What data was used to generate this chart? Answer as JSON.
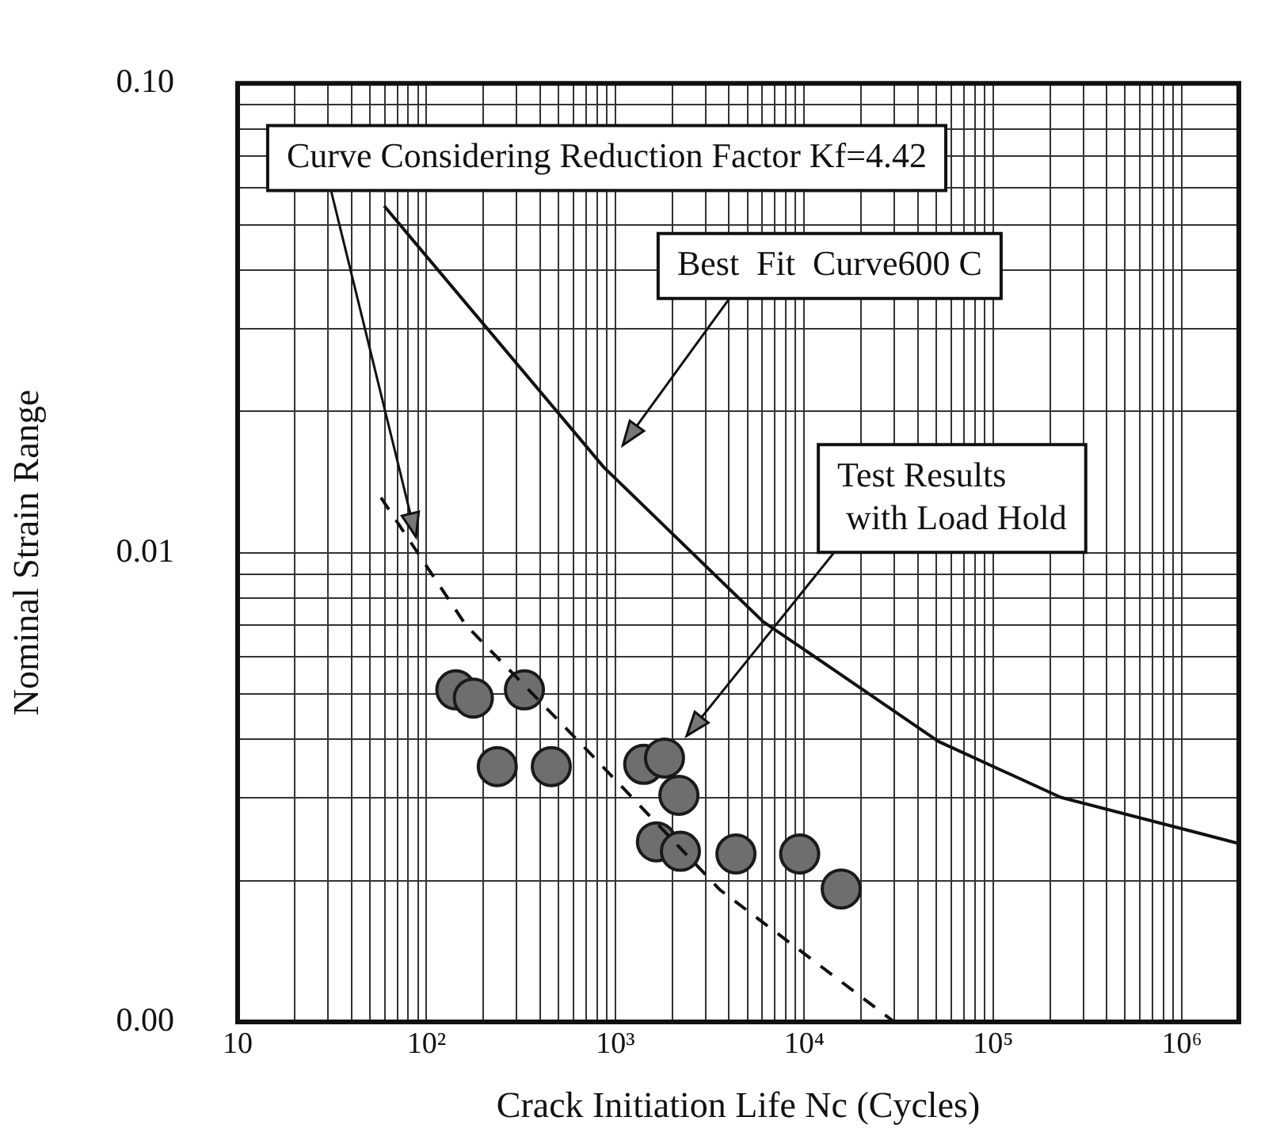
{
  "chart_data": {
    "type": "scatter",
    "xlabel": "Crack Initiation Life Nc (Cycles)",
    "ylabel": "Nominal Strain Range",
    "log": "xy",
    "grid": true,
    "legend": false,
    "xlim": [
      10,
      2000000
    ],
    "ylim": [
      0.001,
      0.1
    ],
    "xticks": [
      10,
      {
        "value": 20,
        "label": null
      },
      {
        "value": 30,
        "label": null
      },
      {
        "value": 40,
        "label": null
      },
      {
        "value": 50,
        "label": null
      },
      {
        "value": 60,
        "label": null
      },
      {
        "value": 70,
        "label": null
      },
      {
        "value": 80,
        "label": null
      },
      {
        "value": 90,
        "label": null
      },
      {
        "value": 100,
        "label": "10²"
      },
      {
        "value": 200,
        "label": null
      },
      {
        "value": 300,
        "label": null
      },
      {
        "value": 400,
        "label": null
      },
      {
        "value": 500,
        "label": null
      },
      {
        "value": 600,
        "label": null
      },
      {
        "value": 700,
        "label": null
      },
      {
        "value": 800,
        "label": null
      },
      {
        "value": 900,
        "label": null
      },
      {
        "value": 1000,
        "label": "10³"
      },
      {
        "value": 2000,
        "label": null
      },
      {
        "value": 3000,
        "label": null
      },
      {
        "value": 4000,
        "label": null
      },
      {
        "value": 5000,
        "label": null
      },
      {
        "value": 6000,
        "label": null
      },
      {
        "value": 7000,
        "label": null
      },
      {
        "value": 8000,
        "label": null
      },
      {
        "value": 9000,
        "label": null
      },
      {
        "value": 10000,
        "label": "10⁴"
      },
      {
        "value": 20000,
        "label": null
      },
      {
        "value": 30000,
        "label": null
      },
      {
        "value": 40000,
        "label": null
      },
      {
        "value": 50000,
        "label": null
      },
      {
        "value": 60000,
        "label": null
      },
      {
        "value": 70000,
        "label": null
      },
      {
        "value": 80000,
        "label": null
      },
      {
        "value": 90000,
        "label": null
      },
      {
        "value": 100000,
        "label": "10⁵"
      },
      {
        "value": 200000,
        "label": null
      },
      {
        "value": 300000,
        "label": null
      },
      {
        "value": 400000,
        "label": null
      },
      {
        "value": 500000,
        "label": null
      },
      {
        "value": 600000,
        "label": null
      },
      {
        "value": 700000,
        "label": null
      },
      {
        "value": 800000,
        "label": null
      },
      {
        "value": 900000,
        "label": null
      },
      {
        "value": 1000000,
        "label": "10⁶"
      },
      {
        "value": 2000000,
        "label": null
      }
    ],
    "yticks": [
      {
        "value": 0.001,
        "label": "0.00"
      },
      {
        "value": 0.002,
        "label": null
      },
      {
        "value": 0.003,
        "label": null
      },
      {
        "value": 0.004,
        "label": null
      },
      {
        "value": 0.005,
        "label": null
      },
      {
        "value": 0.006,
        "label": null
      },
      {
        "value": 0.007,
        "label": null
      },
      {
        "value": 0.008,
        "label": null
      },
      {
        "value": 0.009,
        "label": null
      },
      {
        "value": 0.01,
        "label": "0.01"
      },
      {
        "value": 0.02,
        "label": null
      },
      {
        "value": 0.03,
        "label": null
      },
      {
        "value": 0.04,
        "label": null
      },
      {
        "value": 0.05,
        "label": null
      },
      {
        "value": 0.06,
        "label": null
      },
      {
        "value": 0.07,
        "label": null
      },
      {
        "value": 0.08,
        "label": null
      },
      {
        "value": 0.09,
        "label": null
      },
      {
        "value": 0.1,
        "label": "0.10"
      }
    ],
    "series": [
      {
        "type": "line",
        "color": "#111111",
        "line_style": "solid",
        "marker": "none",
        "x": [
          59.7,
          869,
          6050,
          13970,
          51300,
          228000,
          2000000
        ],
        "values": [
          0.0548,
          0.0152,
          0.00713,
          0.00567,
          0.00396,
          0.00301,
          0.0024
        ]
      },
      {
        "type": "line",
        "color": "#111111",
        "line_style": "dashed",
        "marker": "none",
        "x": [
          57.4,
          161,
          676,
          3590,
          30000
        ],
        "values": [
          0.0131,
          0.00702,
          0.00387,
          0.00191,
          0.001
        ]
      },
      {
        "color": "#6e6e6e",
        "marker": "circle",
        "x": [
          143,
          177,
          330,
          237,
          458,
          1413,
          1820,
          2170,
          1650,
          2210,
          4350,
          9460,
          15700
        ],
        "values": [
          0.0051,
          0.0049,
          0.0051,
          0.0035,
          0.0035,
          0.00354,
          0.00365,
          0.00304,
          0.00242,
          0.00231,
          0.00228,
          0.00228,
          0.00192
        ]
      }
    ],
    "annotations": [
      {
        "text": "Curve Considering Reduction Factor Kf=4.42",
        "x": 88,
        "y": 0.0108
      },
      "Best  Fit  Curve600 C",
      "Test Results\n with Load Hold"
    ]
  }
}
